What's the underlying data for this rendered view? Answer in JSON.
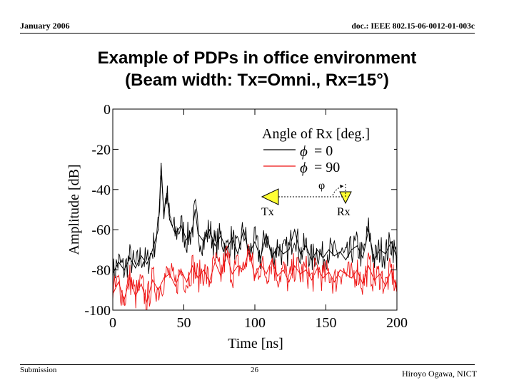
{
  "header": {
    "date": "January 2006",
    "doc_id": "doc.: IEEE 802.15-06-0012-01-003c"
  },
  "slide_title": {
    "line1": "Example of PDPs in office environment",
    "line2": "(Beam width: Tx=Omni., Rx=15°)"
  },
  "footer": {
    "left": "Submission",
    "page": "26",
    "author": "Hiroyo Ogawa, NICT"
  },
  "colors": {
    "series_black": "#000000",
    "series_red": "#ee1111",
    "triangle_fill": "#ffff33"
  },
  "inset": {
    "tx_label": "Tx",
    "rx_label": "Rx",
    "angle_symbol": "φ"
  },
  "chart_data": {
    "type": "line",
    "xlabel": "Time [ns]",
    "ylabel": "Amplitude [dB]",
    "xlim": [
      0,
      200
    ],
    "ylim": [
      -100,
      0
    ],
    "xticks": [
      0,
      50,
      100,
      150,
      200
    ],
    "yticks": [
      0,
      -20,
      -40,
      -60,
      -80,
      -100
    ],
    "legend": {
      "title": "Angle of Rx [deg.]",
      "placement": "top-right",
      "entries": [
        {
          "symbol": "ϕ",
          "text": "= 0"
        },
        {
          "symbol": "ϕ",
          "text": "= 90"
        }
      ]
    },
    "series": [
      {
        "name": "ϕ = 0",
        "color": "#000000",
        "x": [
          0,
          4,
          8,
          12,
          16,
          20,
          24,
          28,
          32,
          33,
          34,
          35,
          36,
          38,
          40,
          44,
          48,
          52,
          56,
          58,
          60,
          64,
          68,
          72,
          76,
          80,
          84,
          88,
          92,
          96,
          100,
          104,
          108,
          112,
          116,
          120,
          124,
          128,
          132,
          136,
          140,
          144,
          148,
          152,
          156,
          160,
          164,
          168,
          172,
          176,
          180,
          184,
          188,
          192,
          196,
          200
        ],
        "y": [
          -82,
          -76,
          -80,
          -74,
          -79,
          -73,
          -77,
          -70,
          -60,
          -45,
          -27,
          -40,
          -52,
          -42,
          -55,
          -62,
          -58,
          -65,
          -60,
          -50,
          -62,
          -66,
          -60,
          -68,
          -63,
          -70,
          -64,
          -72,
          -60,
          -72,
          -66,
          -74,
          -62,
          -74,
          -68,
          -72,
          -70,
          -60,
          -72,
          -68,
          -75,
          -70,
          -74,
          -70,
          -73,
          -71,
          -75,
          -70,
          -68,
          -74,
          -60,
          -75,
          -70,
          -72,
          -66,
          -74
        ]
      },
      {
        "name": "ϕ = 90",
        "color": "#ee1111",
        "x": [
          0,
          4,
          8,
          12,
          16,
          20,
          24,
          28,
          32,
          36,
          40,
          44,
          48,
          52,
          56,
          60,
          64,
          68,
          72,
          76,
          80,
          84,
          88,
          92,
          96,
          100,
          104,
          108,
          112,
          116,
          120,
          124,
          128,
          132,
          136,
          140,
          144,
          148,
          152,
          156,
          160,
          164,
          168,
          172,
          176,
          180,
          184,
          188,
          192,
          196,
          200
        ],
        "y": [
          -92,
          -86,
          -95,
          -84,
          -93,
          -87,
          -96,
          -85,
          -90,
          -84,
          -82,
          -88,
          -80,
          -86,
          -78,
          -84,
          -80,
          -86,
          -76,
          -83,
          -72,
          -82,
          -78,
          -80,
          -70,
          -84,
          -77,
          -82,
          -75,
          -83,
          -80,
          -86,
          -78,
          -82,
          -80,
          -85,
          -79,
          -84,
          -81,
          -86,
          -80,
          -82,
          -84,
          -80,
          -87,
          -78,
          -85,
          -82,
          -88,
          -80,
          -90
        ]
      }
    ]
  }
}
